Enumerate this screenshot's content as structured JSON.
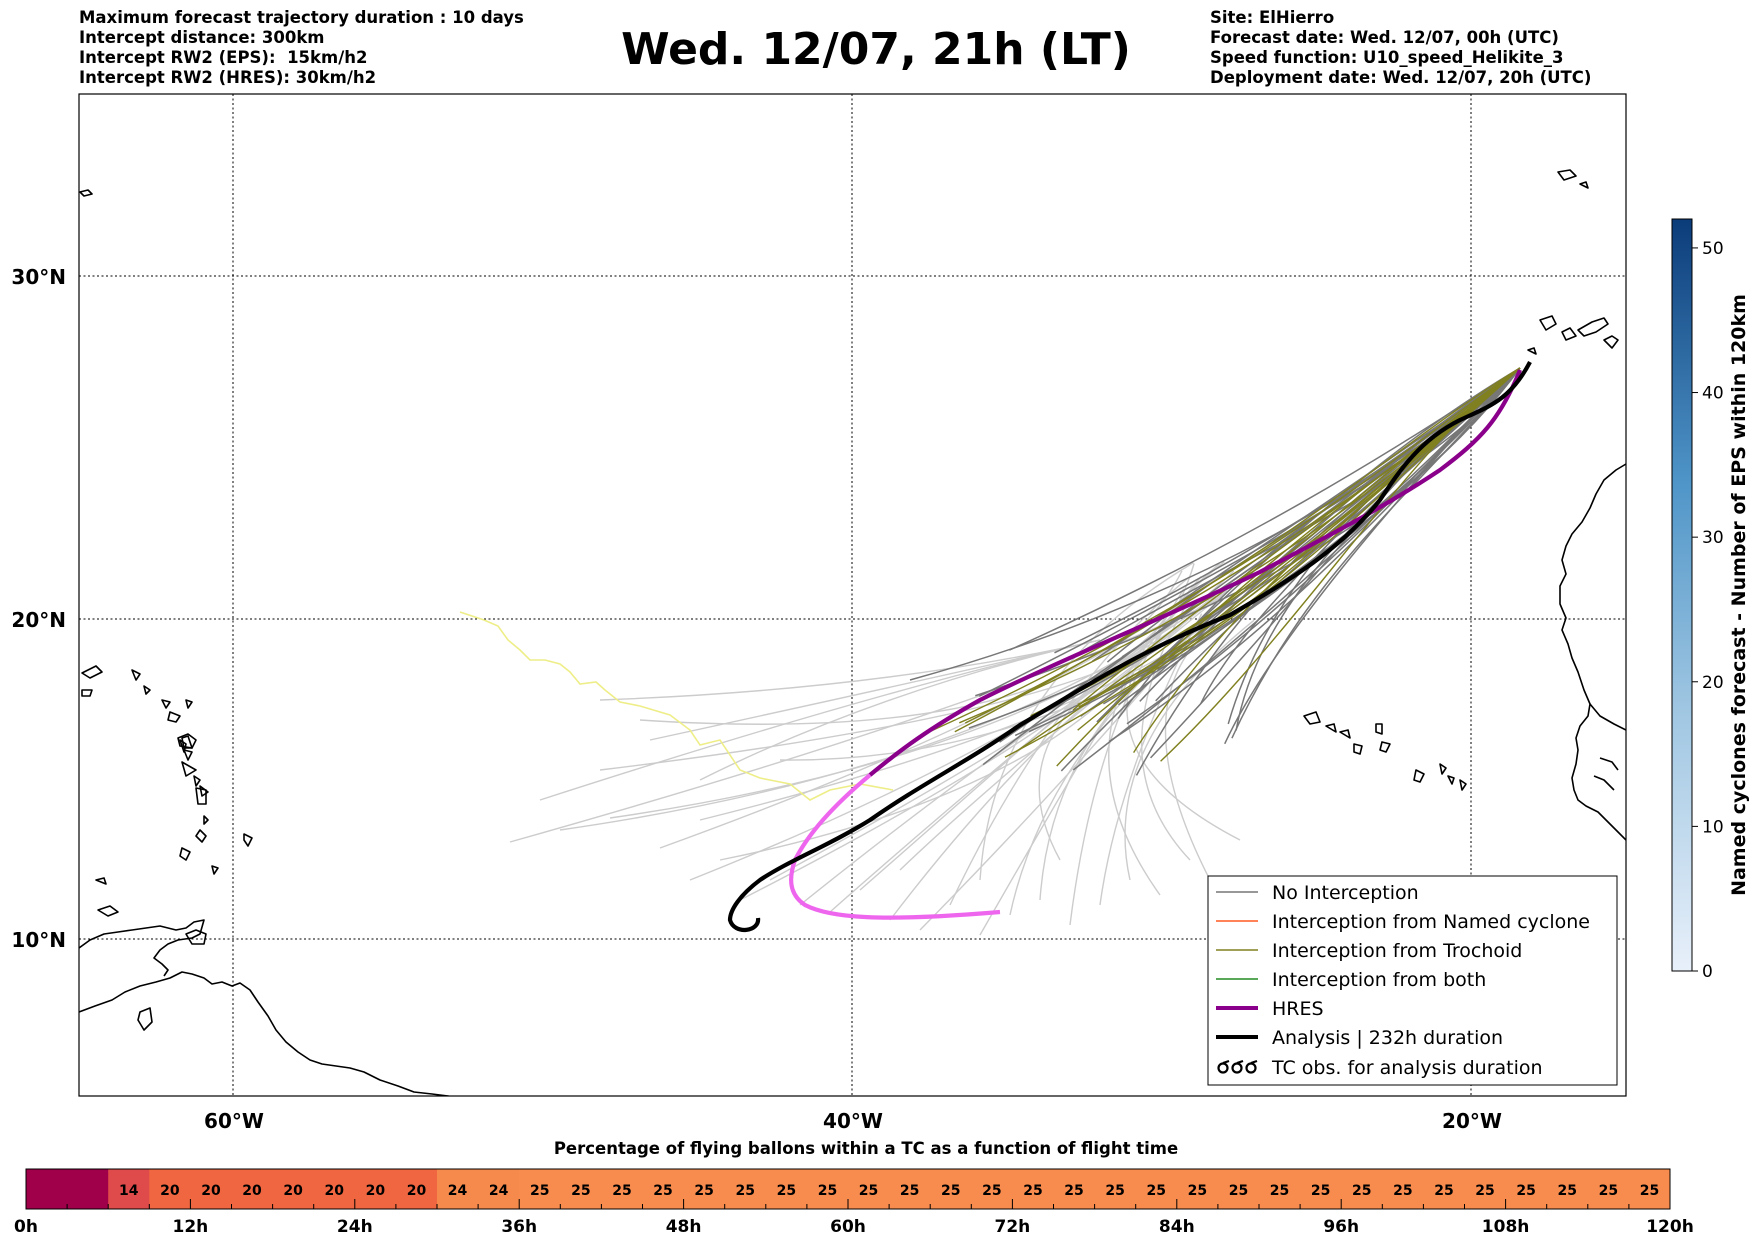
{
  "header": {
    "left": [
      "Maximum forecast trajectory duration : 10 days",
      "Intercept distance: 300km",
      "Intercept RW2 (EPS):  15km/h2",
      "Intercept RW2 (HRES): 30km/h2"
    ],
    "title": "Wed. 12/07, 21h (LT)",
    "right": [
      "Site: ElHierro",
      "Forecast date: Wed. 12/07, 00h (UTC)",
      "Speed function: U10_speed_Helikite_3",
      "Deployment date: Wed. 12/07, 20h (UTC)"
    ]
  },
  "map": {
    "lon_range": [
      -65,
      -15
    ],
    "lat_range": [
      5,
      35
    ],
    "lon_labels": [
      "60°W",
      "40°W",
      "20°W"
    ],
    "lon_ticks": [
      -60,
      -40,
      -20
    ],
    "lat_labels": [
      "30°N",
      "20°N",
      "10°N"
    ],
    "lat_ticks": [
      30,
      20,
      10
    ],
    "colors": {
      "no_interception": "#777777",
      "interception_named": "#ff5a1e",
      "interception_trochoid": "#808020",
      "interception_both": "#228b22",
      "hres": "#8b008b",
      "hres_extension": "#ee66ee",
      "analysis": "#000000",
      "late_gray": "#cccccc",
      "yellow_trace": "#eeee88"
    }
  },
  "legend": {
    "items": [
      {
        "label": "No Interception",
        "style": "no"
      },
      {
        "label": "Interception from Named cyclone",
        "style": "named"
      },
      {
        "label": "Interception from Trochoid",
        "style": "troch"
      },
      {
        "label": "Interception from both",
        "style": "both"
      },
      {
        "label": "HRES",
        "style": "hres"
      },
      {
        "label": "Analysis | 232h duration",
        "style": "analysis"
      },
      {
        "label": "TC obs. for analysis duration",
        "style": "tc"
      }
    ]
  },
  "colorbar": {
    "label": "Named cyclones forecast - Number of EPS within 120km",
    "range": [
      0,
      52
    ],
    "ticks": [
      "0",
      "10",
      "20",
      "30",
      "40",
      "50"
    ],
    "tick_values": [
      0,
      10,
      20,
      30,
      40,
      50
    ],
    "color_low": "#e6eef8",
    "color_high": "#0b3c7a"
  },
  "percent_bar": {
    "title": "Percentage of flying ballons within a TC as a function of flight time",
    "values": [
      "",
      "",
      "14",
      "20",
      "20",
      "20",
      "20",
      "20",
      "20",
      "20",
      "24",
      "24",
      "25",
      "25",
      "25",
      "25",
      "25",
      "25",
      "25",
      "25",
      "25",
      "25",
      "25",
      "25",
      "25",
      "25",
      "25",
      "25",
      "25",
      "25",
      "25",
      "25",
      "25",
      "25",
      "25",
      "25",
      "25",
      "25",
      "25",
      "25"
    ],
    "colors": [
      "#a0004a",
      "#a0004a",
      "#df4a4a",
      "#f06640",
      "#f06640",
      "#f06640",
      "#f06640",
      "#f06640",
      "#f06640",
      "#f06640",
      "#f58a4c",
      "#f58a4c",
      "#f88c4e"
    ],
    "time_labels": [
      "0h",
      "12h",
      "24h",
      "36h",
      "48h",
      "60h",
      "72h",
      "84h",
      "96h",
      "108h",
      "120h"
    ]
  }
}
